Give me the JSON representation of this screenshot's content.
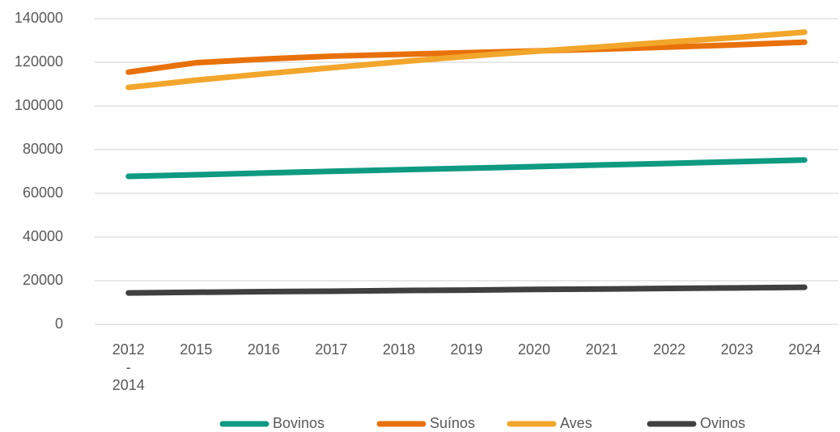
{
  "chart_data": {
    "type": "line",
    "categories": [
      "2012 - 2014",
      "2015",
      "2016",
      "2017",
      "2018",
      "2019",
      "2020",
      "2021",
      "2022",
      "2023",
      "2024"
    ],
    "series": [
      {
        "name": "Bovinos",
        "color": "#0f9a82",
        "values": [
          67800,
          68500,
          69300,
          70100,
          70800,
          71500,
          72200,
          73000,
          73700,
          74500,
          75300
        ]
      },
      {
        "name": "Suínos",
        "color": "#e8710a",
        "values": [
          115500,
          119800,
          121500,
          122800,
          123600,
          124400,
          125200,
          126000,
          127000,
          128000,
          129200
        ]
      },
      {
        "name": "Aves",
        "color": "#f2a62b",
        "values": [
          108500,
          111800,
          114700,
          117500,
          120200,
          122700,
          125000,
          127100,
          129300,
          131400,
          133800
        ]
      },
      {
        "name": "Ovinos",
        "color": "#404040",
        "values": [
          14400,
          14700,
          15000,
          15200,
          15500,
          15700,
          16000,
          16200,
          16500,
          16700,
          17000
        ]
      }
    ],
    "ylim": [
      0,
      140000
    ],
    "yticks": [
      0,
      20000,
      40000,
      60000,
      80000,
      100000,
      120000,
      140000
    ],
    "grid": true,
    "legend": "bottom"
  }
}
